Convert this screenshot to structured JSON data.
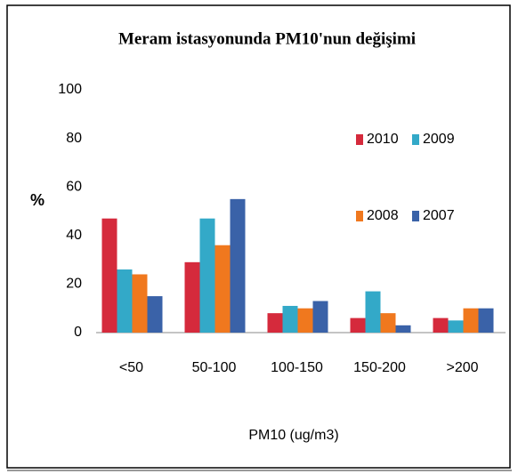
{
  "chart_data": {
    "type": "bar",
    "title": "Meram istasyonunda  PM10'nun  değişimi",
    "xlabel": "PM10 (ug/m3)",
    "ylabel": "%",
    "categories": [
      "<50",
      "50-100",
      "100-150",
      "150-200",
      ">200"
    ],
    "series": [
      {
        "name": "2010",
        "color": "#d52a3c",
        "values": [
          47,
          29,
          8,
          6,
          6
        ]
      },
      {
        "name": "2009",
        "color": "#33a9c8",
        "values": [
          26,
          47,
          11,
          17,
          5
        ]
      },
      {
        "name": "2008",
        "color": "#f0781e",
        "values": [
          24,
          36,
          10,
          8,
          10
        ]
      },
      {
        "name": "2007",
        "color": "#3a62a8",
        "values": [
          15,
          55,
          13,
          3,
          10
        ]
      }
    ],
    "ylim": [
      0,
      100
    ],
    "yticks": [
      0,
      20,
      40,
      60,
      80,
      100
    ],
    "grid": false,
    "legend": "upper right"
  }
}
